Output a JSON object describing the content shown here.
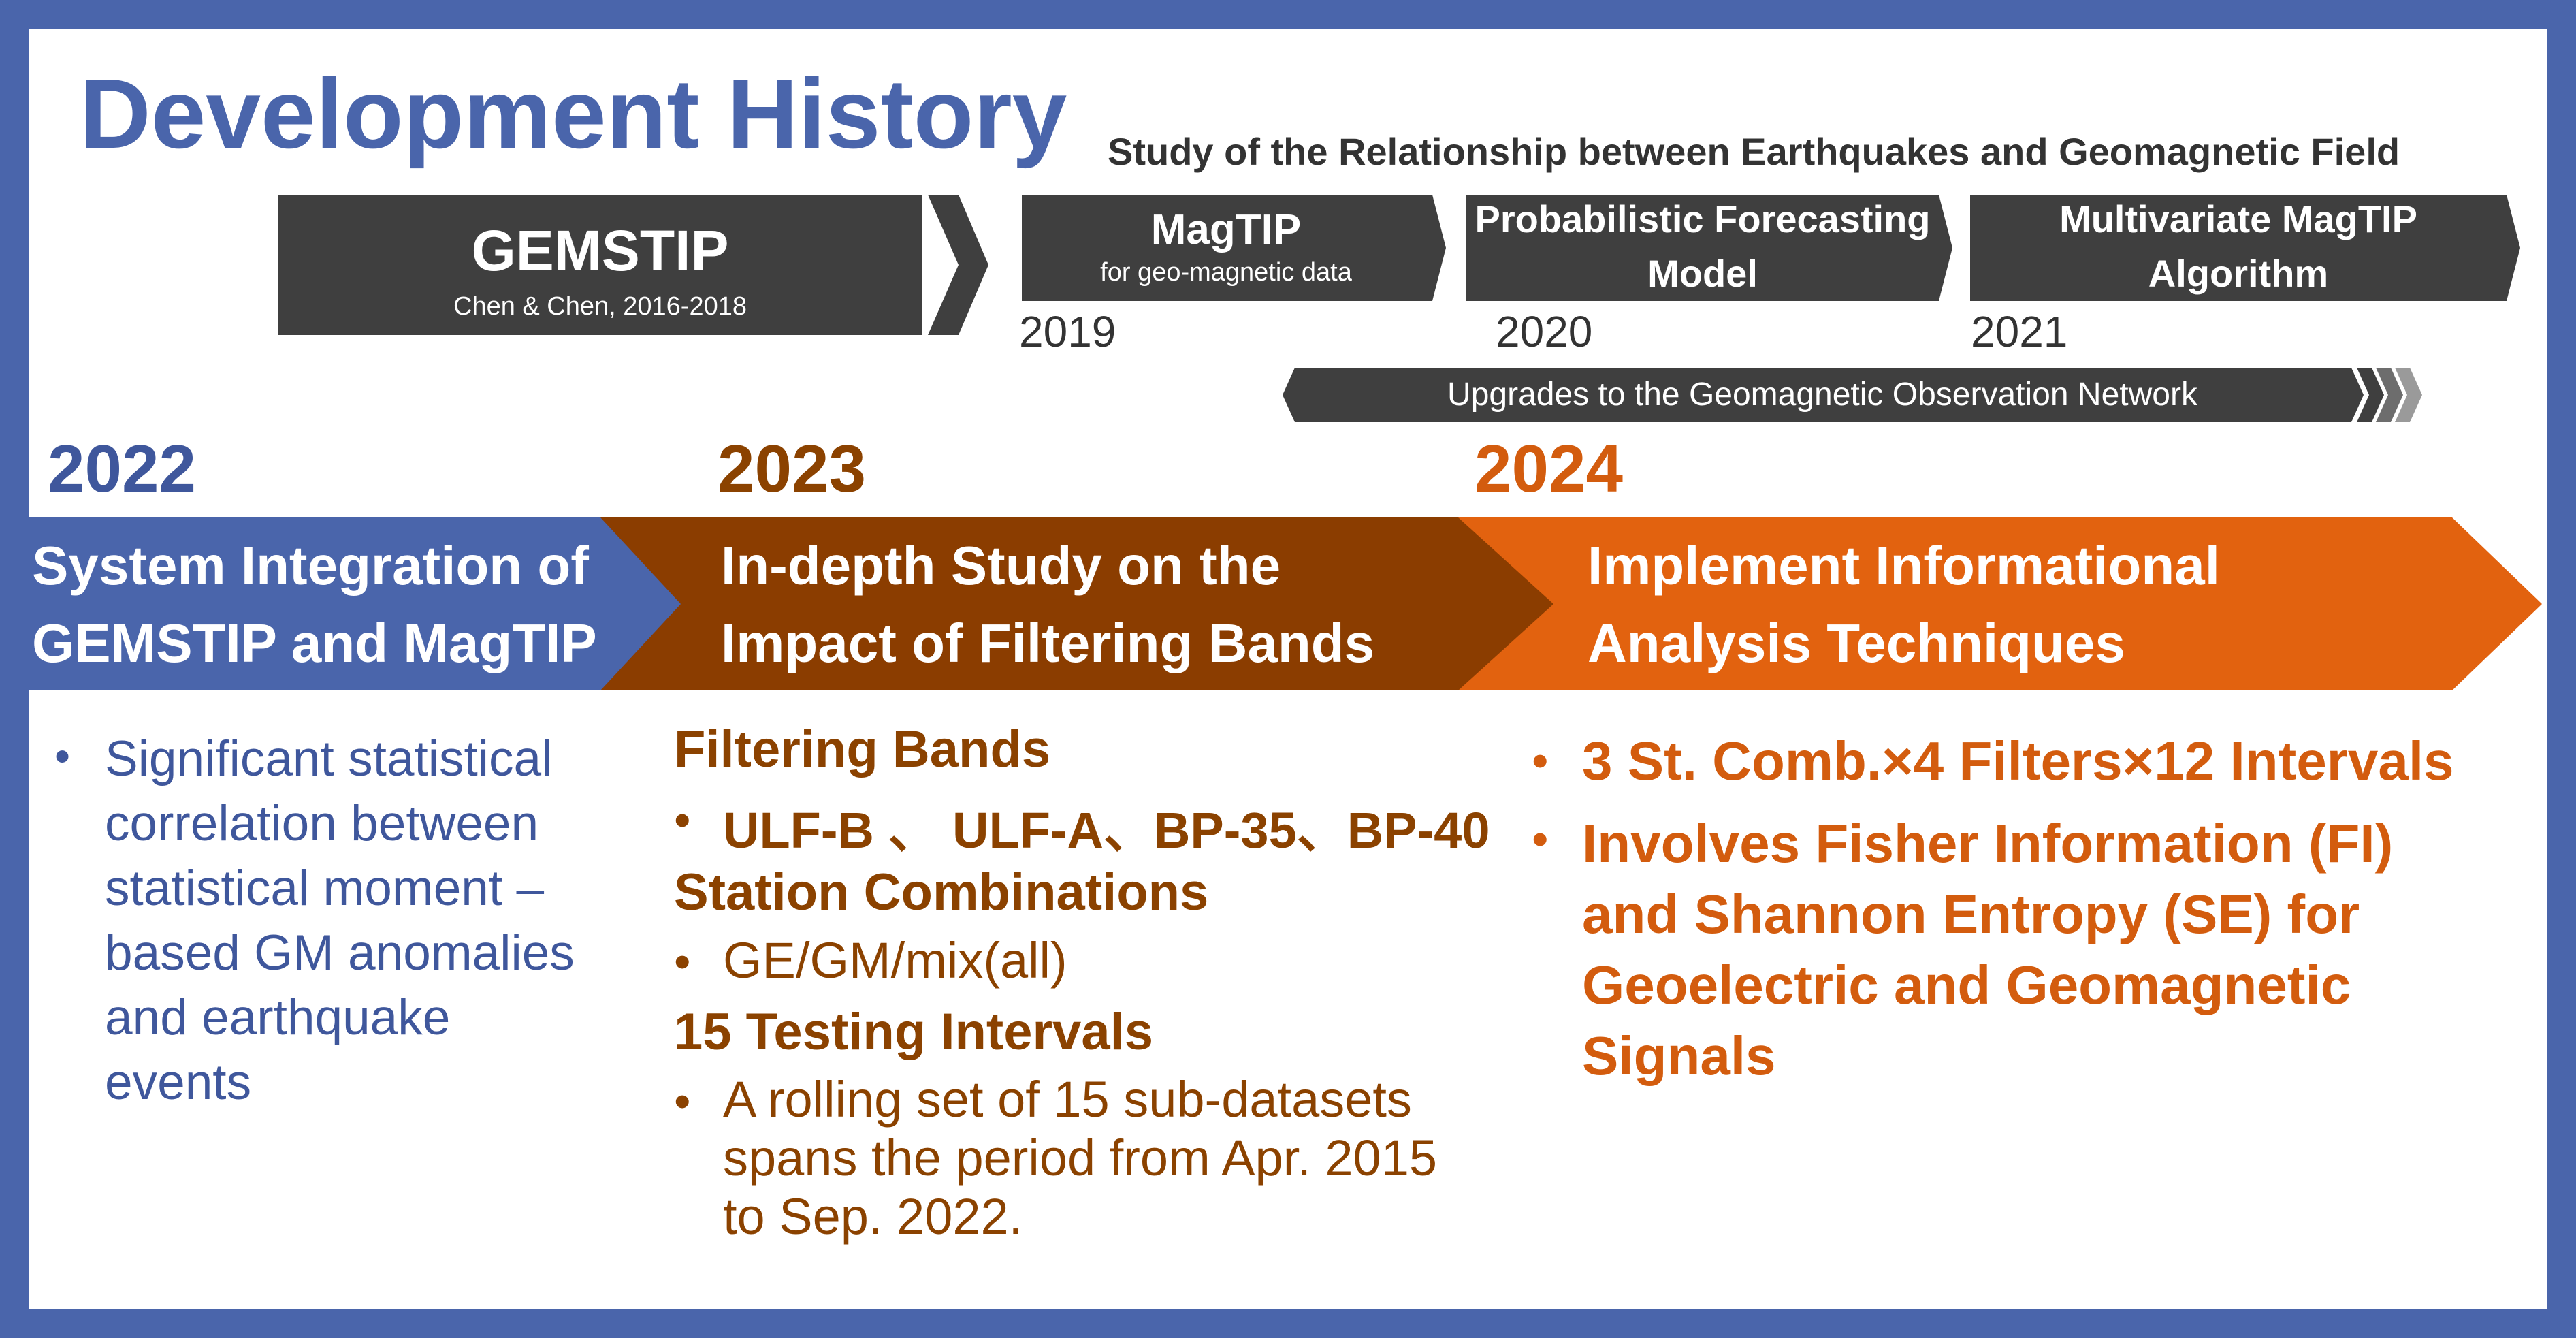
{
  "title": "Development History",
  "subtitle": "Study of the Relationship between Earthquakes and Geomagnetic Field",
  "colors": {
    "frame": "#4a65ab",
    "dark_block": "#3f3f3f",
    "band_2022": "#4a65ab",
    "band_2023": "#8b3d00",
    "band_2024": "#e2620f",
    "text_2022": "#3f579c",
    "text_2023": "#8b4200",
    "text_2024": "#d35c0e"
  },
  "timeline": {
    "gemstip": {
      "label": "GEMSTIP",
      "note": "Chen & Chen, 2016-2018"
    },
    "magtip": {
      "label": "MagTIP",
      "note": "for geo-magnetic data",
      "year": "2019"
    },
    "forecasting": {
      "line1": "Probabilistic Forecasting",
      "line2": "Model",
      "year": "2020"
    },
    "multivariate": {
      "line1": "Multivariate MagTIP",
      "line2": "Algorithm",
      "year": "2021"
    },
    "network_bar": "Upgrades to the Geomagnetic Observation Network"
  },
  "phases": {
    "p2022": {
      "year": "2022",
      "head1": "System Integration of",
      "head2": "GEMSTIP and MagTIP",
      "bullet_lines": [
        "Significant statistical",
        "correlation between",
        "statistical moment –",
        "based GM anomalies",
        "and earthquake",
        "events"
      ]
    },
    "p2023": {
      "year": "2023",
      "head1": "In-depth Study on the",
      "head2": "Impact of Filtering Bands",
      "filter_heading": "Filtering Bands",
      "filter_item": "ULF-B 、 ULF-A、BP-35、BP-40",
      "station_heading": "Station Combinations",
      "station_item": "GE/GM/mix(all)",
      "interval_heading": "15 Testing Intervals",
      "interval_lines": [
        "A rolling set of 15 sub-datasets",
        "spans the period from Apr. 2015",
        "to Sep. 2022."
      ]
    },
    "p2024": {
      "year": "2024",
      "head1": "Implement Informational",
      "head2": "Analysis Techniques",
      "bullet1": "3 St. Comb.×4 Filters×12 Intervals",
      "bullet2_lines": [
        "Involves Fisher Information (FI)",
        "and Shannon Entropy (SE) for",
        "Geoelectric and Geomagnetic",
        "Signals"
      ]
    }
  }
}
